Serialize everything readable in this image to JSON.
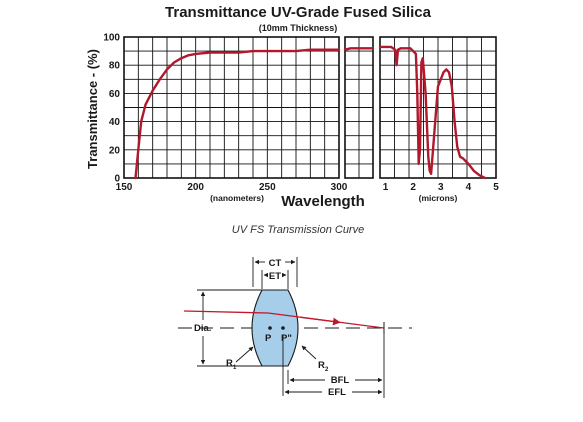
{
  "chart_data": {
    "type": "line",
    "title": "Transmittance UV-Grade Fused Silica",
    "subtitle": "(10mm Thickness)",
    "ylabel": "Transmittance - (%)",
    "xlabel": "Wavelength",
    "ylim": [
      0,
      100
    ],
    "y_ticks": [
      "0",
      "20",
      "40",
      "60",
      "80",
      "100"
    ],
    "grid": true,
    "line_color": "#b0182c",
    "panels": [
      {
        "unit_label": "(nanometers)",
        "xlim": [
          150,
          300
        ],
        "x_ticks": [
          "150",
          "200",
          "250",
          "300"
        ],
        "x": [
          158,
          160,
          162,
          165,
          170,
          175,
          180,
          185,
          190,
          195,
          200,
          210,
          220,
          230,
          240,
          250,
          260,
          270,
          280,
          290,
          300
        ],
        "y": [
          0,
          20,
          40,
          52,
          62,
          70,
          77,
          82,
          85,
          87,
          88,
          89,
          89,
          89,
          90,
          90,
          90,
          90,
          91,
          91,
          91
        ]
      },
      {
        "unit_label": "",
        "xlim": [
          300,
          800
        ],
        "x_ticks": [],
        "x": [
          300,
          400,
          500,
          600,
          700,
          800
        ],
        "y": [
          91,
          92,
          92,
          92,
          92,
          92
        ]
      },
      {
        "unit_label": "(microns)",
        "xlim": [
          0.8,
          5
        ],
        "x_ticks": [
          "1",
          "2",
          "3",
          "4",
          "5"
        ],
        "x": [
          0.8,
          1.0,
          1.2,
          1.35,
          1.4,
          1.45,
          1.55,
          1.7,
          1.9,
          2.0,
          2.1,
          2.15,
          2.2,
          2.25,
          2.3,
          2.35,
          2.45,
          2.55,
          2.6,
          2.65,
          2.72,
          2.8,
          2.9,
          3.0,
          3.1,
          3.2,
          3.3,
          3.4,
          3.5,
          3.6,
          3.7,
          3.8,
          4.0,
          4.2,
          4.4,
          4.6
        ],
        "y": [
          93,
          93,
          93,
          91,
          80,
          91,
          92,
          92,
          92,
          90,
          88,
          60,
          10,
          20,
          82,
          85,
          60,
          15,
          5,
          3,
          20,
          40,
          65,
          70,
          75,
          77,
          75,
          65,
          40,
          22,
          15,
          14,
          10,
          5,
          2,
          0
        ]
      }
    ]
  },
  "caption": "UV FS Transmission Curve",
  "lens_diagram": {
    "labels": {
      "ct": "CT",
      "et": "ET",
      "dia": "Dia.",
      "p": "P",
      "p_prime": "P\"",
      "r1": "R",
      "r1_sub": "1",
      "r2": "R",
      "r2_sub": "2",
      "bfl": "BFL",
      "efl": "EFL"
    },
    "colors": {
      "lens_fill": "#a6cde9",
      "ray": "#c0182c"
    }
  }
}
